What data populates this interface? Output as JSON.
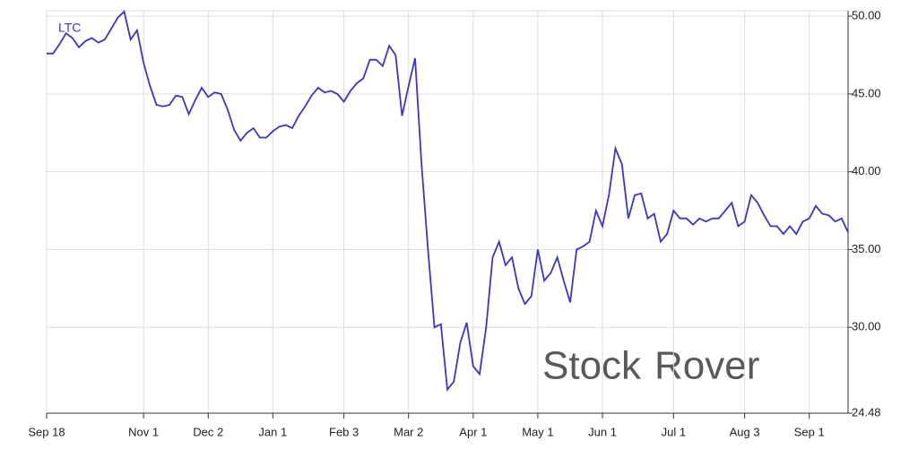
{
  "chart_data": {
    "type": "line",
    "categories": [
      "Sep 18",
      null,
      null,
      null,
      null,
      null,
      null,
      null,
      null,
      null,
      null,
      null,
      null,
      null,
      null,
      "Nov 1",
      null,
      null,
      null,
      null,
      null,
      null,
      null,
      null,
      null,
      "Dec 2",
      null,
      null,
      null,
      null,
      null,
      null,
      null,
      null,
      null,
      "Jan 1",
      null,
      null,
      null,
      null,
      null,
      null,
      null,
      null,
      null,
      null,
      "Feb 3",
      null,
      null,
      null,
      null,
      null,
      null,
      null,
      null,
      null,
      "Mar 2",
      null,
      null,
      null,
      null,
      null,
      null,
      null,
      null,
      null,
      "Apr 1",
      null,
      null,
      null,
      null,
      null,
      null,
      null,
      null,
      null,
      "May 1",
      null,
      null,
      null,
      null,
      null,
      null,
      null,
      null,
      null,
      "Jun 1",
      null,
      null,
      null,
      null,
      null,
      null,
      null,
      null,
      null,
      null,
      "Jul 1",
      null,
      null,
      null,
      null,
      null,
      null,
      null,
      null,
      null,
      null,
      "Aug 3",
      null,
      null,
      null,
      null,
      null,
      null,
      null,
      null,
      null,
      "Sep 1",
      null,
      null,
      null,
      null,
      null,
      null
    ],
    "series": [
      {
        "name": "LTC",
        "color": "#3b35c9",
        "values": [
          47.6,
          47.6,
          48.2,
          48.9,
          48.6,
          48.0,
          48.4,
          48.6,
          48.3,
          48.5,
          49.2,
          49.9,
          50.3,
          48.5,
          49.1,
          47.0,
          45.5,
          44.3,
          44.2,
          44.3,
          44.9,
          44.8,
          43.7,
          44.6,
          45.4,
          44.8,
          45.1,
          45.0,
          44.0,
          42.7,
          42.0,
          42.5,
          42.8,
          42.2,
          42.2,
          42.6,
          42.9,
          43.0,
          42.8,
          43.6,
          44.2,
          44.9,
          45.4,
          45.1,
          45.2,
          45.0,
          44.5,
          45.2,
          45.7,
          46.0,
          47.2,
          47.2,
          46.8,
          48.1,
          47.5,
          43.6,
          45.5,
          47.3,
          40.5,
          35.0,
          30.0,
          30.2,
          26.0,
          26.5,
          29.0,
          30.3,
          27.5,
          27.0,
          30.0,
          34.5,
          35.5,
          34.0,
          34.5,
          32.5,
          31.5,
          32.0,
          35.0,
          33.0,
          33.5,
          34.5,
          33.0,
          31.6,
          35.0,
          35.2,
          35.5,
          37.5,
          36.5,
          38.5,
          41.5,
          40.5,
          37.0,
          38.5,
          38.6,
          37.0,
          37.3,
          35.5,
          36.0,
          37.5,
          37.0,
          37.0,
          36.6,
          37.0,
          36.8,
          37.0,
          37.0,
          37.5,
          38.0,
          36.5,
          36.8,
          38.5,
          38.0,
          37.2,
          36.5,
          36.5,
          36.0,
          36.5,
          36.0,
          36.8,
          37.0,
          37.8,
          37.3,
          37.2,
          36.8,
          37.0,
          36.1
        ]
      }
    ],
    "ylim": [
      24.48,
      50.35
    ],
    "yticks": [
      {
        "value": 24.48,
        "label": "24.48"
      },
      {
        "value": 30,
        "label": "30.00"
      },
      {
        "value": 35,
        "label": "35.00"
      },
      {
        "value": 40,
        "label": "40.00"
      },
      {
        "value": 45,
        "label": "45.00"
      },
      {
        "value": 50,
        "label": "50.00"
      }
    ],
    "grid": true,
    "watermark": {
      "first": "Stock",
      "second": "Rover"
    }
  }
}
